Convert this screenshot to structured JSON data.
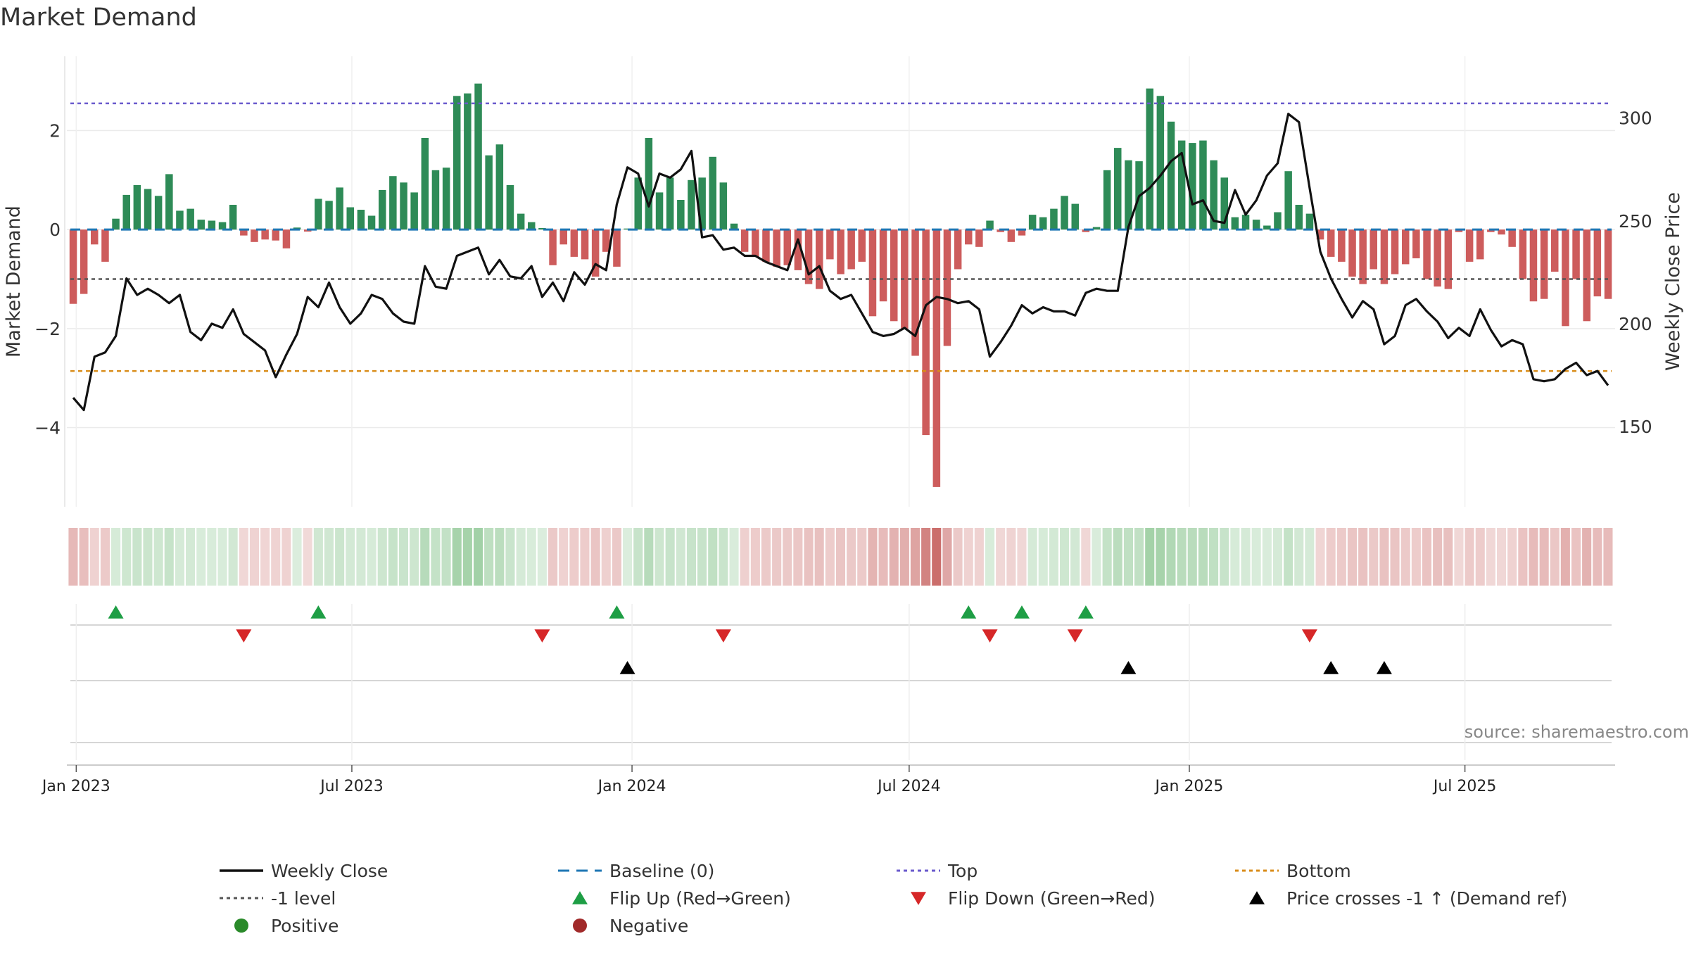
{
  "chart_data": {
    "type": "bar+line",
    "title": "Market Demand",
    "ylabel_left": "Market Demand",
    "ylabel_right": "Weekly Close Price",
    "source": "source: sharemaestro.com",
    "x_start": "2022-12-30",
    "x_step_days": 7,
    "x_ticks": [
      {
        "label": "Jan 2023",
        "date": "2023-01-01"
      },
      {
        "label": "Jul 2023",
        "date": "2023-07-01"
      },
      {
        "label": "Jan 2024",
        "date": "2024-01-01"
      },
      {
        "label": "Jul 2024",
        "date": "2024-07-01"
      },
      {
        "label": "Jan 2025",
        "date": "2025-01-01"
      },
      {
        "label": "Jul 2025",
        "date": "2025-07-01"
      }
    ],
    "left_ticks": [
      {
        "value": 2,
        "label": "2"
      },
      {
        "value": 0,
        "label": "0"
      },
      {
        "value": -2,
        "label": "−2"
      },
      {
        "value": -4,
        "label": "−4"
      }
    ],
    "right_ticks": [
      {
        "value": 300,
        "label": "300"
      },
      {
        "value": 250,
        "label": "250"
      },
      {
        "value": 200,
        "label": "200"
      },
      {
        "value": 150,
        "label": "150"
      }
    ],
    "ylim_demand": [
      -5.6,
      3.5
    ],
    "ylim_price": [
      111,
      330
    ],
    "levels": {
      "top": 2.55,
      "minus_one": -1.0,
      "bottom_price": 177,
      "baseline": 0
    },
    "demand": [
      -1.5,
      -1.3,
      -0.3,
      -0.65,
      0.22,
      0.7,
      0.9,
      0.82,
      0.68,
      1.12,
      0.38,
      0.42,
      0.2,
      0.18,
      0.15,
      0.5,
      -0.12,
      -0.25,
      -0.2,
      -0.22,
      -0.38,
      0.04,
      -0.04,
      0.62,
      0.58,
      0.85,
      0.45,
      0.4,
      0.28,
      0.8,
      1.08,
      0.95,
      0.75,
      1.85,
      1.2,
      1.25,
      2.7,
      2.75,
      2.95,
      1.5,
      1.72,
      0.9,
      0.32,
      0.15,
      0.03,
      -0.72,
      -0.3,
      -0.55,
      -0.6,
      -0.95,
      -0.45,
      -0.75,
      0.02,
      1.05,
      1.85,
      0.75,
      1.05,
      0.6,
      1.0,
      1.05,
      1.47,
      0.95,
      0.12,
      -0.45,
      -0.55,
      -0.65,
      -0.75,
      -0.72,
      -0.82,
      -1.1,
      -1.2,
      -0.6,
      -0.9,
      -0.8,
      -0.65,
      -1.75,
      -1.45,
      -1.85,
      -2.0,
      -2.55,
      -4.15,
      -5.2,
      -2.35,
      -0.8,
      -0.3,
      -0.35,
      0.18,
      -0.05,
      -0.25,
      -0.12,
      0.3,
      0.25,
      0.42,
      0.68,
      0.52,
      -0.05,
      0.05,
      1.2,
      1.65,
      1.4,
      1.38,
      2.85,
      2.7,
      2.18,
      1.8,
      1.75,
      1.8,
      1.4,
      1.05,
      0.25,
      0.3,
      0.2,
      0.08,
      0.35,
      1.18,
      0.5,
      0.32,
      -0.2,
      -0.55,
      -0.65,
      -0.95,
      -1.1,
      -0.8,
      -1.1,
      -0.9,
      -0.7,
      -0.58,
      -1.0,
      -1.15,
      -1.2,
      -0.05,
      -0.65,
      -0.6,
      -0.05,
      -0.1,
      -0.35,
      -1.0,
      -1.45,
      -1.4,
      -0.85,
      -1.95,
      -1.0,
      -1.85,
      -1.35,
      -1.4
    ],
    "price": [
      164,
      158,
      184,
      186,
      194,
      222,
      214,
      217,
      214,
      210,
      214,
      196,
      192,
      200,
      198,
      207,
      195,
      191,
      187,
      174,
      185,
      195,
      213,
      208,
      220,
      208,
      200,
      205,
      214,
      212,
      205,
      201,
      200,
      228,
      218,
      217,
      233,
      235,
      237,
      224,
      231,
      223,
      222,
      228,
      213,
      220,
      211,
      225,
      219,
      229,
      226,
      258,
      276,
      273,
      257,
      273,
      271,
      275,
      284,
      242,
      243,
      236,
      237,
      233,
      233,
      230,
      228,
      226,
      241,
      224,
      228,
      216,
      212,
      214,
      205,
      196,
      194,
      195,
      198,
      194,
      209,
      213,
      212,
      210,
      211,
      207,
      184,
      191,
      199,
      209,
      205,
      208,
      206,
      206,
      204,
      215,
      217,
      216,
      216,
      247,
      262,
      266,
      272,
      279,
      283,
      258,
      260,
      250,
      249,
      265,
      253,
      260,
      272,
      278,
      302,
      298,
      266,
      235,
      222,
      212,
      203,
      211,
      207,
      190,
      194,
      209,
      212,
      206,
      201,
      193,
      198,
      194,
      207,
      197,
      189,
      192,
      190,
      173,
      172,
      173,
      178,
      181,
      175,
      177,
      170
    ],
    "flip_up": [
      4,
      23,
      51,
      84,
      89,
      95
    ],
    "flip_down": [
      16,
      44,
      61,
      86,
      94,
      116
    ],
    "price_cross": [
      52,
      99,
      118,
      123
    ],
    "legend": [
      {
        "label": "Weekly Close",
        "icon": "solid-line",
        "color": "#111111"
      },
      {
        "label": "Baseline (0)",
        "icon": "dash-line",
        "color": "#1f77b4"
      },
      {
        "label": "Top",
        "icon": "dot-line",
        "color": "#6a5acd"
      },
      {
        "label": "Bottom",
        "icon": "dot-line",
        "color": "#d98c1a"
      },
      {
        "label": "-1 level",
        "icon": "dot-line",
        "color": "#555555"
      },
      {
        "label": "Flip Up (Red→Green)",
        "icon": "triangle-up",
        "color": "#1e9e45"
      },
      {
        "label": "Flip Down (Green→Red)",
        "icon": "triangle-down",
        "color": "#d62728"
      },
      {
        "label": "Price crosses -1 ↑ (Demand ref)",
        "icon": "triangle-up",
        "color": "#000000"
      },
      {
        "label": "Positive",
        "icon": "circle",
        "color": "#2a8a2a"
      },
      {
        "label": "Negative",
        "icon": "circle",
        "color": "#a12a2a"
      }
    ],
    "colors": {
      "positive_bar": "#2e8b57",
      "negative_bar": "#cd5c5c",
      "price_line": "#111111",
      "baseline": "#1f77b4",
      "top": "#6a5acd",
      "minus_one": "#555555",
      "bottom": "#d98c1a",
      "heat_positive": "#5cae64",
      "heat_negative": "#c0504d"
    }
  }
}
